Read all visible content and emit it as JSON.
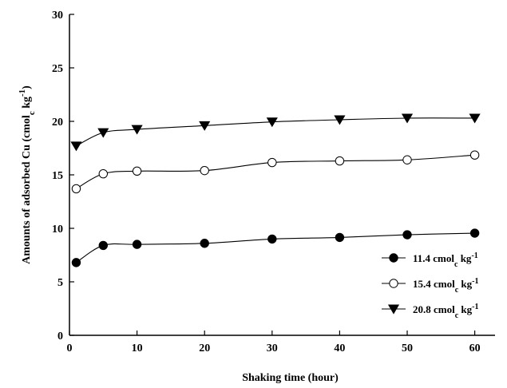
{
  "chart_data": {
    "type": "line",
    "xlabel": "Shaking time (hour)",
    "ylabel": {
      "main": "Amounts of adsorbed Cu (cmol",
      "sub": "c",
      "mid": " kg",
      "sup": "-1",
      "end": ")"
    },
    "xlim": [
      0,
      63
    ],
    "ylim": [
      0,
      30
    ],
    "x_ticks": [
      0,
      10,
      20,
      30,
      40,
      50,
      60
    ],
    "y_ticks": [
      0,
      5,
      10,
      15,
      20,
      25,
      30
    ],
    "grid": false,
    "legend_position": "bottom-right",
    "x": [
      1,
      5,
      10,
      20,
      30,
      40,
      50,
      60
    ],
    "series": [
      {
        "name": {
          "main": "11.4 cmol",
          "sub": "c",
          "mid": " kg",
          "sup": "-1"
        },
        "marker": "filled-circle",
        "values": [
          6.8,
          8.4,
          8.5,
          8.6,
          9.0,
          9.15,
          9.4,
          9.55
        ]
      },
      {
        "name": {
          "main": "15.4 cmol",
          "sub": "c",
          "mid": " kg",
          "sup": "-1"
        },
        "marker": "open-circle",
        "values": [
          13.7,
          15.1,
          15.35,
          15.4,
          16.15,
          16.3,
          16.4,
          16.85
        ]
      },
      {
        "name": {
          "main": "20.8 cmol",
          "sub": "c",
          "mid": " kg",
          "sup": "-1"
        },
        "marker": "filled-triangle-down",
        "values": [
          17.7,
          18.95,
          19.25,
          19.6,
          19.95,
          20.15,
          20.3,
          20.3
        ]
      }
    ]
  }
}
